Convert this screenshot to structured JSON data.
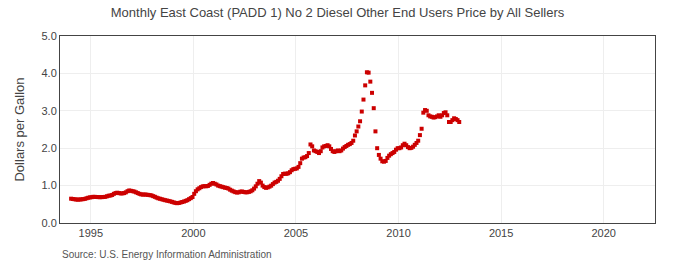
{
  "chart_data": {
    "type": "scatter",
    "title": "Monthly East Coast (PADD 1) No 2 Diesel Other End Users Price by All Sellers",
    "ylabel": "Dollars per Gallon",
    "annotations": [
      "Source: U.S. Energy Information Administration"
    ],
    "marker": "square",
    "color": "#cc0000",
    "grid": true,
    "xlim": [
      1993.5,
      2022.5
    ],
    "xticks": [
      1995,
      2000,
      2005,
      2010,
      2015,
      2020
    ],
    "ylim": [
      0.0,
      5.0
    ],
    "yticks": [
      {
        "value": 0.0,
        "label": "0.0"
      },
      {
        "value": 1.0,
        "label": "1.0"
      },
      {
        "value": 2.0,
        "label": "2.0"
      },
      {
        "value": 3.0,
        "label": "3.0"
      },
      {
        "value": 4.0,
        "label": "4.0"
      },
      {
        "value": 5.0,
        "label": "5.0"
      }
    ],
    "x": [
      1994.041667,
      1994.125,
      1994.208333,
      1994.291667,
      1994.375,
      1994.458333,
      1994.541667,
      1994.625,
      1994.708333,
      1994.791667,
      1994.875,
      1994.958333,
      1995.041667,
      1995.125,
      1995.208333,
      1995.291667,
      1995.375,
      1995.458333,
      1995.541667,
      1995.625,
      1995.708333,
      1995.791667,
      1995.875,
      1995.958333,
      1996.041667,
      1996.125,
      1996.208333,
      1996.291667,
      1996.375,
      1996.458333,
      1996.541667,
      1996.625,
      1996.708333,
      1996.791667,
      1996.875,
      1996.958333,
      1997.041667,
      1997.125,
      1997.208333,
      1997.291667,
      1997.375,
      1997.458333,
      1997.541667,
      1997.625,
      1997.708333,
      1997.791667,
      1997.875,
      1997.958333,
      1998.041667,
      1998.125,
      1998.208333,
      1998.291667,
      1998.375,
      1998.458333,
      1998.541667,
      1998.625,
      1998.708333,
      1998.791667,
      1998.875,
      1998.958333,
      1999.041667,
      1999.125,
      1999.208333,
      1999.291667,
      1999.375,
      1999.458333,
      1999.541667,
      1999.625,
      1999.708333,
      1999.791667,
      1999.875,
      1999.958333,
      2000.041667,
      2000.125,
      2000.208333,
      2000.291667,
      2000.375,
      2000.458333,
      2000.541667,
      2000.625,
      2000.708333,
      2000.791667,
      2000.875,
      2000.958333,
      2001.041667,
      2001.125,
      2001.208333,
      2001.291667,
      2001.375,
      2001.458333,
      2001.541667,
      2001.625,
      2001.708333,
      2001.791667,
      2001.875,
      2001.958333,
      2002.041667,
      2002.125,
      2002.208333,
      2002.291667,
      2002.375,
      2002.458333,
      2002.541667,
      2002.625,
      2002.708333,
      2002.791667,
      2002.875,
      2002.958333,
      2003.041667,
      2003.125,
      2003.208333,
      2003.291667,
      2003.375,
      2003.458333,
      2003.541667,
      2003.625,
      2003.708333,
      2003.791667,
      2003.875,
      2003.958333,
      2004.041667,
      2004.125,
      2004.208333,
      2004.291667,
      2004.375,
      2004.458333,
      2004.541667,
      2004.625,
      2004.708333,
      2004.791667,
      2004.875,
      2004.958333,
      2005.041667,
      2005.125,
      2005.208333,
      2005.291667,
      2005.375,
      2005.458333,
      2005.541667,
      2005.625,
      2005.708333,
      2005.791667,
      2005.875,
      2005.958333,
      2006.041667,
      2006.125,
      2006.208333,
      2006.291667,
      2006.375,
      2006.458333,
      2006.541667,
      2006.625,
      2006.708333,
      2006.791667,
      2006.875,
      2006.958333,
      2007.041667,
      2007.125,
      2007.208333,
      2007.291667,
      2007.375,
      2007.458333,
      2007.541667,
      2007.625,
      2007.708333,
      2007.791667,
      2007.875,
      2007.958333,
      2008.041667,
      2008.125,
      2008.208333,
      2008.291667,
      2008.375,
      2008.458333,
      2008.541667,
      2008.625,
      2008.708333,
      2008.791667,
      2008.875,
      2008.958333,
      2009.041667,
      2009.125,
      2009.208333,
      2009.291667,
      2009.375,
      2009.458333,
      2009.541667,
      2009.625,
      2009.708333,
      2009.791667,
      2009.875,
      2009.958333,
      2010.041667,
      2010.125,
      2010.208333,
      2010.291667,
      2010.375,
      2010.458333,
      2010.541667,
      2010.625,
      2010.708333,
      2010.791667,
      2010.875,
      2010.958333,
      2011.041667,
      2011.125,
      2011.208333,
      2011.291667,
      2011.375,
      2011.458333,
      2011.541667,
      2011.625,
      2011.708333,
      2011.791667,
      2011.875,
      2011.958333,
      2012.041667,
      2012.125,
      2012.208333,
      2012.291667,
      2012.375,
      2012.458333,
      2012.541667,
      2012.625,
      2012.708333,
      2012.791667,
      2012.875,
      2012.958333
    ],
    "values": [
      0.65,
      0.642,
      0.635,
      0.628,
      0.625,
      0.628,
      0.632,
      0.638,
      0.645,
      0.66,
      0.675,
      0.685,
      0.69,
      0.7,
      0.698,
      0.695,
      0.692,
      0.69,
      0.692,
      0.695,
      0.7,
      0.715,
      0.73,
      0.735,
      0.75,
      0.78,
      0.8,
      0.81,
      0.8,
      0.79,
      0.792,
      0.8,
      0.82,
      0.85,
      0.87,
      0.86,
      0.85,
      0.84,
      0.82,
      0.8,
      0.78,
      0.765,
      0.76,
      0.762,
      0.758,
      0.752,
      0.745,
      0.738,
      0.718,
      0.7,
      0.678,
      0.66,
      0.648,
      0.635,
      0.622,
      0.61,
      0.6,
      0.59,
      0.578,
      0.565,
      0.55,
      0.538,
      0.53,
      0.535,
      0.548,
      0.562,
      0.575,
      0.592,
      0.61,
      0.638,
      0.665,
      0.695,
      0.78,
      0.85,
      0.9,
      0.93,
      0.96,
      0.98,
      0.985,
      0.982,
      0.99,
      1.02,
      1.05,
      1.07,
      1.05,
      1.03,
      1.0,
      0.985,
      0.972,
      0.958,
      0.945,
      0.935,
      0.92,
      0.89,
      0.865,
      0.845,
      0.825,
      0.815,
      0.82,
      0.838,
      0.842,
      0.83,
      0.82,
      0.822,
      0.832,
      0.848,
      0.875,
      0.92,
      0.98,
      1.05,
      1.12,
      1.08,
      1.0,
      0.96,
      0.94,
      0.952,
      0.972,
      0.998,
      1.04,
      1.08,
      1.1,
      1.13,
      1.18,
      1.25,
      1.31,
      1.32,
      1.315,
      1.33,
      1.36,
      1.41,
      1.44,
      1.45,
      1.46,
      1.5,
      1.6,
      1.72,
      1.75,
      1.76,
      1.79,
      1.87,
      2.1,
      2.05,
      1.94,
      1.92,
      1.9,
      1.87,
      1.92,
      2.02,
      2.05,
      2.06,
      2.08,
      2.05,
      1.98,
      1.92,
      1.9,
      1.92,
      1.94,
      1.92,
      1.94,
      1.99,
      2.03,
      2.06,
      2.09,
      2.11,
      2.14,
      2.2,
      2.34,
      2.45,
      2.58,
      2.72,
      2.98,
      3.3,
      3.68,
      4.03,
      4.02,
      3.78,
      3.48,
      3.07,
      2.45,
      2.0,
      1.82,
      1.72,
      1.65,
      1.64,
      1.66,
      1.74,
      1.8,
      1.84,
      1.87,
      1.9,
      1.96,
      2.0,
      2.0,
      2.02,
      2.08,
      2.12,
      2.08,
      2.03,
      2.0,
      2.01,
      2.04,
      2.09,
      2.14,
      2.2,
      2.35,
      2.52,
      2.95,
      3.02,
      3.0,
      2.88,
      2.85,
      2.84,
      2.82,
      2.83,
      2.85,
      2.88,
      2.84,
      2.88,
      2.94,
      2.96,
      2.88,
      2.7,
      2.7,
      2.75,
      2.8,
      2.78,
      2.75,
      2.7
    ]
  }
}
